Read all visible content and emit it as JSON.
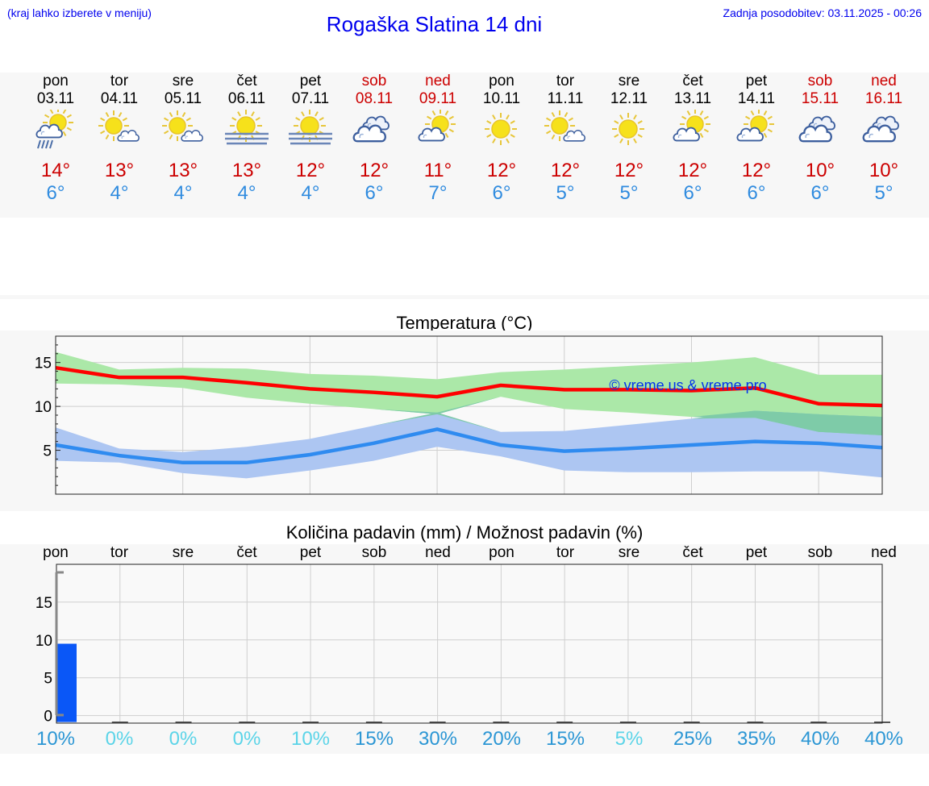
{
  "header": {
    "hint": "(kraj lahko izberete v meniju)",
    "title": "Rogaška Slatina 14 dni",
    "updated": "Zadnja posodobitev: 03.11.2025 - 00:26"
  },
  "days": [
    {
      "name": "pon",
      "date": "03.11",
      "weekend": false,
      "icon": "sun-cloud-rain-icon",
      "max": "14°",
      "min": "6°"
    },
    {
      "name": "tor",
      "date": "04.11",
      "weekend": false,
      "icon": "sun-small-cloud-icon",
      "max": "13°",
      "min": "4°"
    },
    {
      "name": "sre",
      "date": "05.11",
      "weekend": false,
      "icon": "sun-small-cloud-icon",
      "max": "13°",
      "min": "4°"
    },
    {
      "name": "čet",
      "date": "06.11",
      "weekend": false,
      "icon": "sun-fog-icon",
      "max": "13°",
      "min": "4°"
    },
    {
      "name": "pet",
      "date": "07.11",
      "weekend": false,
      "icon": "sun-fog-icon",
      "max": "12°",
      "min": "4°"
    },
    {
      "name": "sob",
      "date": "08.11",
      "weekend": true,
      "icon": "cloudy-icon",
      "max": "12°",
      "min": "6°"
    },
    {
      "name": "ned",
      "date": "09.11",
      "weekend": true,
      "icon": "sun-cloud-icon",
      "max": "11°",
      "min": "7°"
    },
    {
      "name": "pon",
      "date": "10.11",
      "weekend": false,
      "icon": "sun-icon",
      "max": "12°",
      "min": "6°"
    },
    {
      "name": "tor",
      "date": "11.11",
      "weekend": false,
      "icon": "sun-small-cloud-icon",
      "max": "12°",
      "min": "5°"
    },
    {
      "name": "sre",
      "date": "12.11",
      "weekend": false,
      "icon": "sun-icon",
      "max": "12°",
      "min": "5°"
    },
    {
      "name": "čet",
      "date": "13.11",
      "weekend": false,
      "icon": "sun-cloud-icon",
      "max": "12°",
      "min": "6°"
    },
    {
      "name": "pet",
      "date": "14.11",
      "weekend": false,
      "icon": "sun-cloud-icon",
      "max": "12°",
      "min": "6°"
    },
    {
      "name": "sob",
      "date": "15.11",
      "weekend": true,
      "icon": "cloudy-icon",
      "max": "10°",
      "min": "6°"
    },
    {
      "name": "ned",
      "date": "16.11",
      "weekend": true,
      "icon": "cloudy-icon",
      "max": "10°",
      "min": "5°"
    }
  ],
  "colors": {
    "max_line": "#ff0000",
    "min_line": "#2f8bf0",
    "max_band": "#abe8a8",
    "min_band": "#adc6f2",
    "overlap_band": "#7ecba8",
    "bar": "#0a57f7",
    "pct_low": "#5bd4e8",
    "pct_high": "#2b96d4"
  },
  "chart_data": [
    {
      "type": "line",
      "title": "Temperatura (°C)",
      "watermark": "© vreme.us & vreme.pro",
      "ylim": [
        0,
        18
      ],
      "yticks": [
        "5",
        "10",
        "15"
      ],
      "x": [
        0,
        1,
        2,
        3,
        4,
        5,
        6,
        7,
        8,
        9,
        10,
        11,
        12,
        13
      ],
      "series": [
        {
          "name": "max",
          "values": [
            14.4,
            13.3,
            13.3,
            12.7,
            12.0,
            11.6,
            11.1,
            12.4,
            11.9,
            11.9,
            11.8,
            12.1,
            10.3,
            10.1
          ]
        },
        {
          "name": "max_band_high",
          "values": [
            16.2,
            14.2,
            14.4,
            14.3,
            13.7,
            13.5,
            13.1,
            13.9,
            14.2,
            14.6,
            15.0,
            15.6,
            13.6,
            13.6
          ]
        },
        {
          "name": "max_band_low",
          "values": [
            12.6,
            12.5,
            12.1,
            11.0,
            10.3,
            9.7,
            9.1,
            11.1,
            9.7,
            9.3,
            8.8,
            8.7,
            7.1,
            6.7
          ]
        },
        {
          "name": "min",
          "values": [
            5.6,
            4.4,
            3.6,
            3.6,
            4.5,
            5.8,
            7.4,
            5.6,
            4.9,
            5.2,
            5.6,
            6.0,
            5.8,
            5.3
          ]
        },
        {
          "name": "min_band_high",
          "values": [
            7.6,
            5.2,
            4.8,
            5.4,
            6.3,
            7.8,
            9.3,
            7.1,
            7.2,
            7.9,
            8.6,
            9.5,
            9.1,
            8.8
          ]
        },
        {
          "name": "min_band_low",
          "values": [
            3.8,
            3.6,
            2.4,
            1.8,
            2.7,
            3.8,
            5.4,
            4.3,
            2.7,
            2.5,
            2.5,
            2.6,
            2.6,
            1.9
          ]
        }
      ]
    },
    {
      "type": "bar",
      "title": "Količina padavin (mm) / Možnost padavin (%)",
      "categories": [
        "pon",
        "tor",
        "sre",
        "čet",
        "pet",
        "sob",
        "ned",
        "pon",
        "tor",
        "sre",
        "čet",
        "pet",
        "sob",
        "ned"
      ],
      "values": [
        9.5,
        0,
        0,
        0,
        0,
        0,
        0,
        0,
        0,
        0,
        0,
        0,
        0,
        0
      ],
      "ylim": [
        -1,
        20
      ],
      "yticks": [
        "0",
        "5",
        "10",
        "15"
      ],
      "probability": [
        "10%",
        "0%",
        "0%",
        "0%",
        "10%",
        "15%",
        "30%",
        "20%",
        "15%",
        "5%",
        "25%",
        "35%",
        "40%",
        "40%"
      ]
    }
  ]
}
